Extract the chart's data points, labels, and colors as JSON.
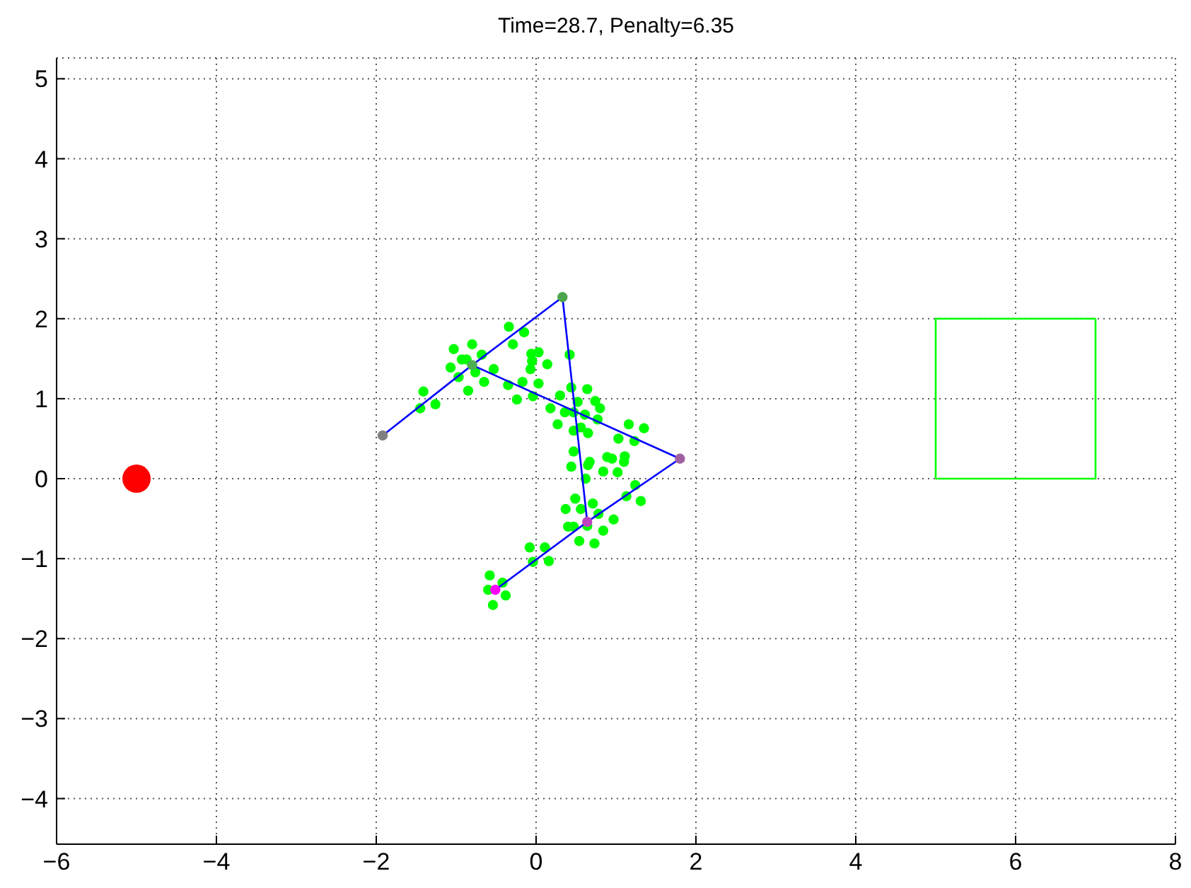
{
  "chart_data": {
    "type": "scatter",
    "title": "Time=28.7, Penalty=6.35",
    "xlim": [
      -6,
      8
    ],
    "ylim": [
      -4.57,
      5.26
    ],
    "xticks": [
      -6,
      -4,
      -2,
      0,
      2,
      4,
      6,
      8
    ],
    "yticks": [
      -4,
      -3,
      -2,
      -1,
      0,
      1,
      2,
      3,
      4,
      5
    ],
    "grid": true,
    "series": [
      {
        "color": "#00ff00",
        "marker": "circle",
        "x": [
          -0.34,
          -0.15,
          -0.29,
          -1.03,
          -0.8,
          -0.68,
          -0.87,
          -1.07,
          -0.93,
          -0.97,
          -0.76,
          -0.53,
          -0.65,
          -0.85,
          -1.41,
          -1.45,
          -1.26,
          -0.06,
          0.03,
          -0.05,
          0.14,
          -0.07,
          0.42,
          -0.35,
          -0.17,
          0.03,
          -0.24,
          -0.04,
          0.18,
          0.3,
          0.44,
          0.64,
          0.74,
          0.8,
          0.52,
          0.36,
          0.27,
          0.47,
          0.61,
          0.77,
          0.56,
          0.47,
          0.65,
          1.16,
          1.35,
          1.03,
          1.23,
          0.47,
          0.67,
          0.89,
          0.95,
          1.11,
          1.1,
          0.44,
          0.65,
          0.84,
          1.02,
          0.62,
          1.24,
          0.49,
          0.71,
          1.13,
          1.31,
          0.37,
          0.56,
          0.78,
          0.97,
          0.4,
          0.47,
          0.64,
          0.84,
          0.54,
          0.73,
          -0.08,
          0.11,
          -0.04,
          0.16,
          -0.58,
          -0.42,
          -0.6,
          -0.38,
          -0.54
        ],
        "values": [
          1.9,
          1.83,
          1.68,
          1.62,
          1.68,
          1.55,
          1.49,
          1.39,
          1.49,
          1.27,
          1.33,
          1.37,
          1.21,
          1.1,
          1.09,
          0.88,
          0.93,
          1.56,
          1.58,
          1.47,
          1.43,
          1.37,
          1.55,
          1.17,
          1.21,
          1.19,
          0.99,
          1.03,
          0.88,
          1.04,
          1.14,
          1.12,
          0.97,
          0.88,
          0.96,
          0.83,
          0.68,
          0.83,
          0.8,
          0.74,
          0.64,
          0.6,
          0.57,
          0.68,
          0.63,
          0.5,
          0.47,
          0.34,
          0.21,
          0.27,
          0.25,
          0.28,
          0.21,
          0.15,
          0.17,
          0.09,
          0.08,
          0,
          -0.08,
          -0.25,
          -0.31,
          -0.22,
          -0.28,
          -0.38,
          -0.38,
          -0.44,
          -0.51,
          -0.6,
          -0.6,
          -0.59,
          -0.65,
          -0.78,
          -0.81,
          -0.86,
          -0.86,
          -1.04,
          -1.03,
          -1.21,
          -1.3,
          -1.39,
          -1.46,
          -1.58
        ]
      },
      {
        "type": "line",
        "color": "#0000ff",
        "marker": "none",
        "x": [
          -1.92,
          -0.8,
          0.33,
          0.64
        ],
        "values": [
          0.54,
          1.42,
          2.27,
          -0.54
        ]
      },
      {
        "type": "line",
        "color": "#0000ff",
        "marker": "none",
        "x": [
          -0.8,
          1.8,
          0.64,
          -0.51
        ],
        "values": [
          1.42,
          0.25,
          -0.54,
          -1.39
        ]
      },
      {
        "type": "line",
        "color": "#00ff00",
        "marker": "none",
        "x": [
          5,
          7,
          7
        ],
        "values": [
          0,
          0,
          2
        ]
      },
      {
        "type": "line",
        "color": "#00ff00",
        "marker": "none",
        "x": [
          7,
          5,
          5
        ],
        "values": [
          2,
          2,
          0
        ]
      },
      {
        "marker": "circle",
        "colors": [
          "#808080",
          "#4caf50",
          "#4ca64c",
          "#a060a0",
          "#c040c0",
          "#ff00ff"
        ],
        "x": [
          -1.92,
          -0.8,
          0.33,
          1.8,
          0.64,
          -0.51
        ],
        "values": [
          0.54,
          1.42,
          2.27,
          0.25,
          -0.54,
          -1.39
        ]
      },
      {
        "color": "#ff0000",
        "marker": "circle",
        "x": [
          -5
        ],
        "values": [
          0
        ]
      }
    ]
  }
}
